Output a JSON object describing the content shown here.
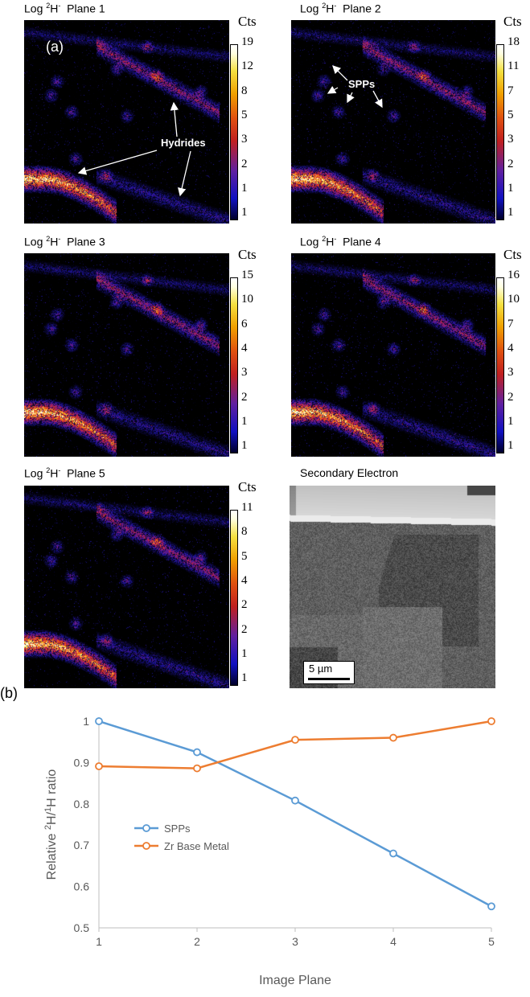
{
  "figure": {
    "label_a": "(a)",
    "label_b": "(b)",
    "panels": [
      {
        "title_prefix": "Log ",
        "isotope": "2",
        "title_main": "H",
        "charge": "-",
        "plane": "  Plane 1",
        "cts": "Cts",
        "ticks": [
          "19",
          "12",
          "8",
          "5",
          "3",
          "2",
          "1",
          "1"
        ]
      },
      {
        "title_prefix": "Log ",
        "isotope": "2",
        "title_main": "H",
        "charge": "-",
        "plane": "  Plane 2",
        "cts": "Cts",
        "ticks": [
          "18",
          "11",
          "7",
          "5",
          "3",
          "2",
          "1",
          "1"
        ]
      },
      {
        "title_prefix": "Log ",
        "isotope": "2",
        "title_main": "H",
        "charge": "-",
        "plane": "  Plane 3",
        "cts": "Cts",
        "ticks": [
          "15",
          "10",
          "6",
          "4",
          "3",
          "2",
          "1",
          "1"
        ]
      },
      {
        "title_prefix": "Log ",
        "isotope": "2",
        "title_main": "H",
        "charge": "-",
        "plane": "  Plane 4",
        "cts": "Cts",
        "ticks": [
          "16",
          "10",
          "7",
          "4",
          "3",
          "2",
          "1",
          "1"
        ]
      },
      {
        "title_prefix": "Log ",
        "isotope": "2",
        "title_main": "H",
        "charge": "-",
        "plane": "  Plane 5",
        "cts": "Cts",
        "ticks": [
          "11",
          "8",
          "5",
          "4",
          "2",
          "2",
          "1",
          "1"
        ]
      }
    ],
    "annotations": {
      "hydrides": "Hydrides",
      "spps": "SPPs"
    },
    "se_panel": {
      "title": "Secondary Electron",
      "scalebar": "5 µm"
    }
  },
  "chart_data": {
    "type": "line",
    "x": [
      1,
      2,
      3,
      4,
      5
    ],
    "series": [
      {
        "name": "SPPs",
        "color": "#5b9bd5",
        "values": [
          1.0,
          0.925,
          0.808,
          0.68,
          0.552
        ]
      },
      {
        "name": "Zr Base Metal",
        "color": "#ed7d31",
        "values": [
          0.891,
          0.886,
          0.955,
          0.96,
          1.0
        ]
      }
    ],
    "xlabel": "Image Plane",
    "ylabel_prefix": "Relative ",
    "ylabel_sup1": "2",
    "ylabel_mid": "H/",
    "ylabel_sup2": "1",
    "ylabel_suffix": "H ratio",
    "xticks": [
      "1",
      "2",
      "3",
      "4",
      "5"
    ],
    "yticks": [
      "0.5",
      "0.6",
      "0.7",
      "0.8",
      "0.9",
      "1"
    ],
    "ylim": [
      0.5,
      1.0
    ],
    "xlim": [
      1,
      5
    ],
    "legend_position": "bottom-left",
    "grid": false
  }
}
